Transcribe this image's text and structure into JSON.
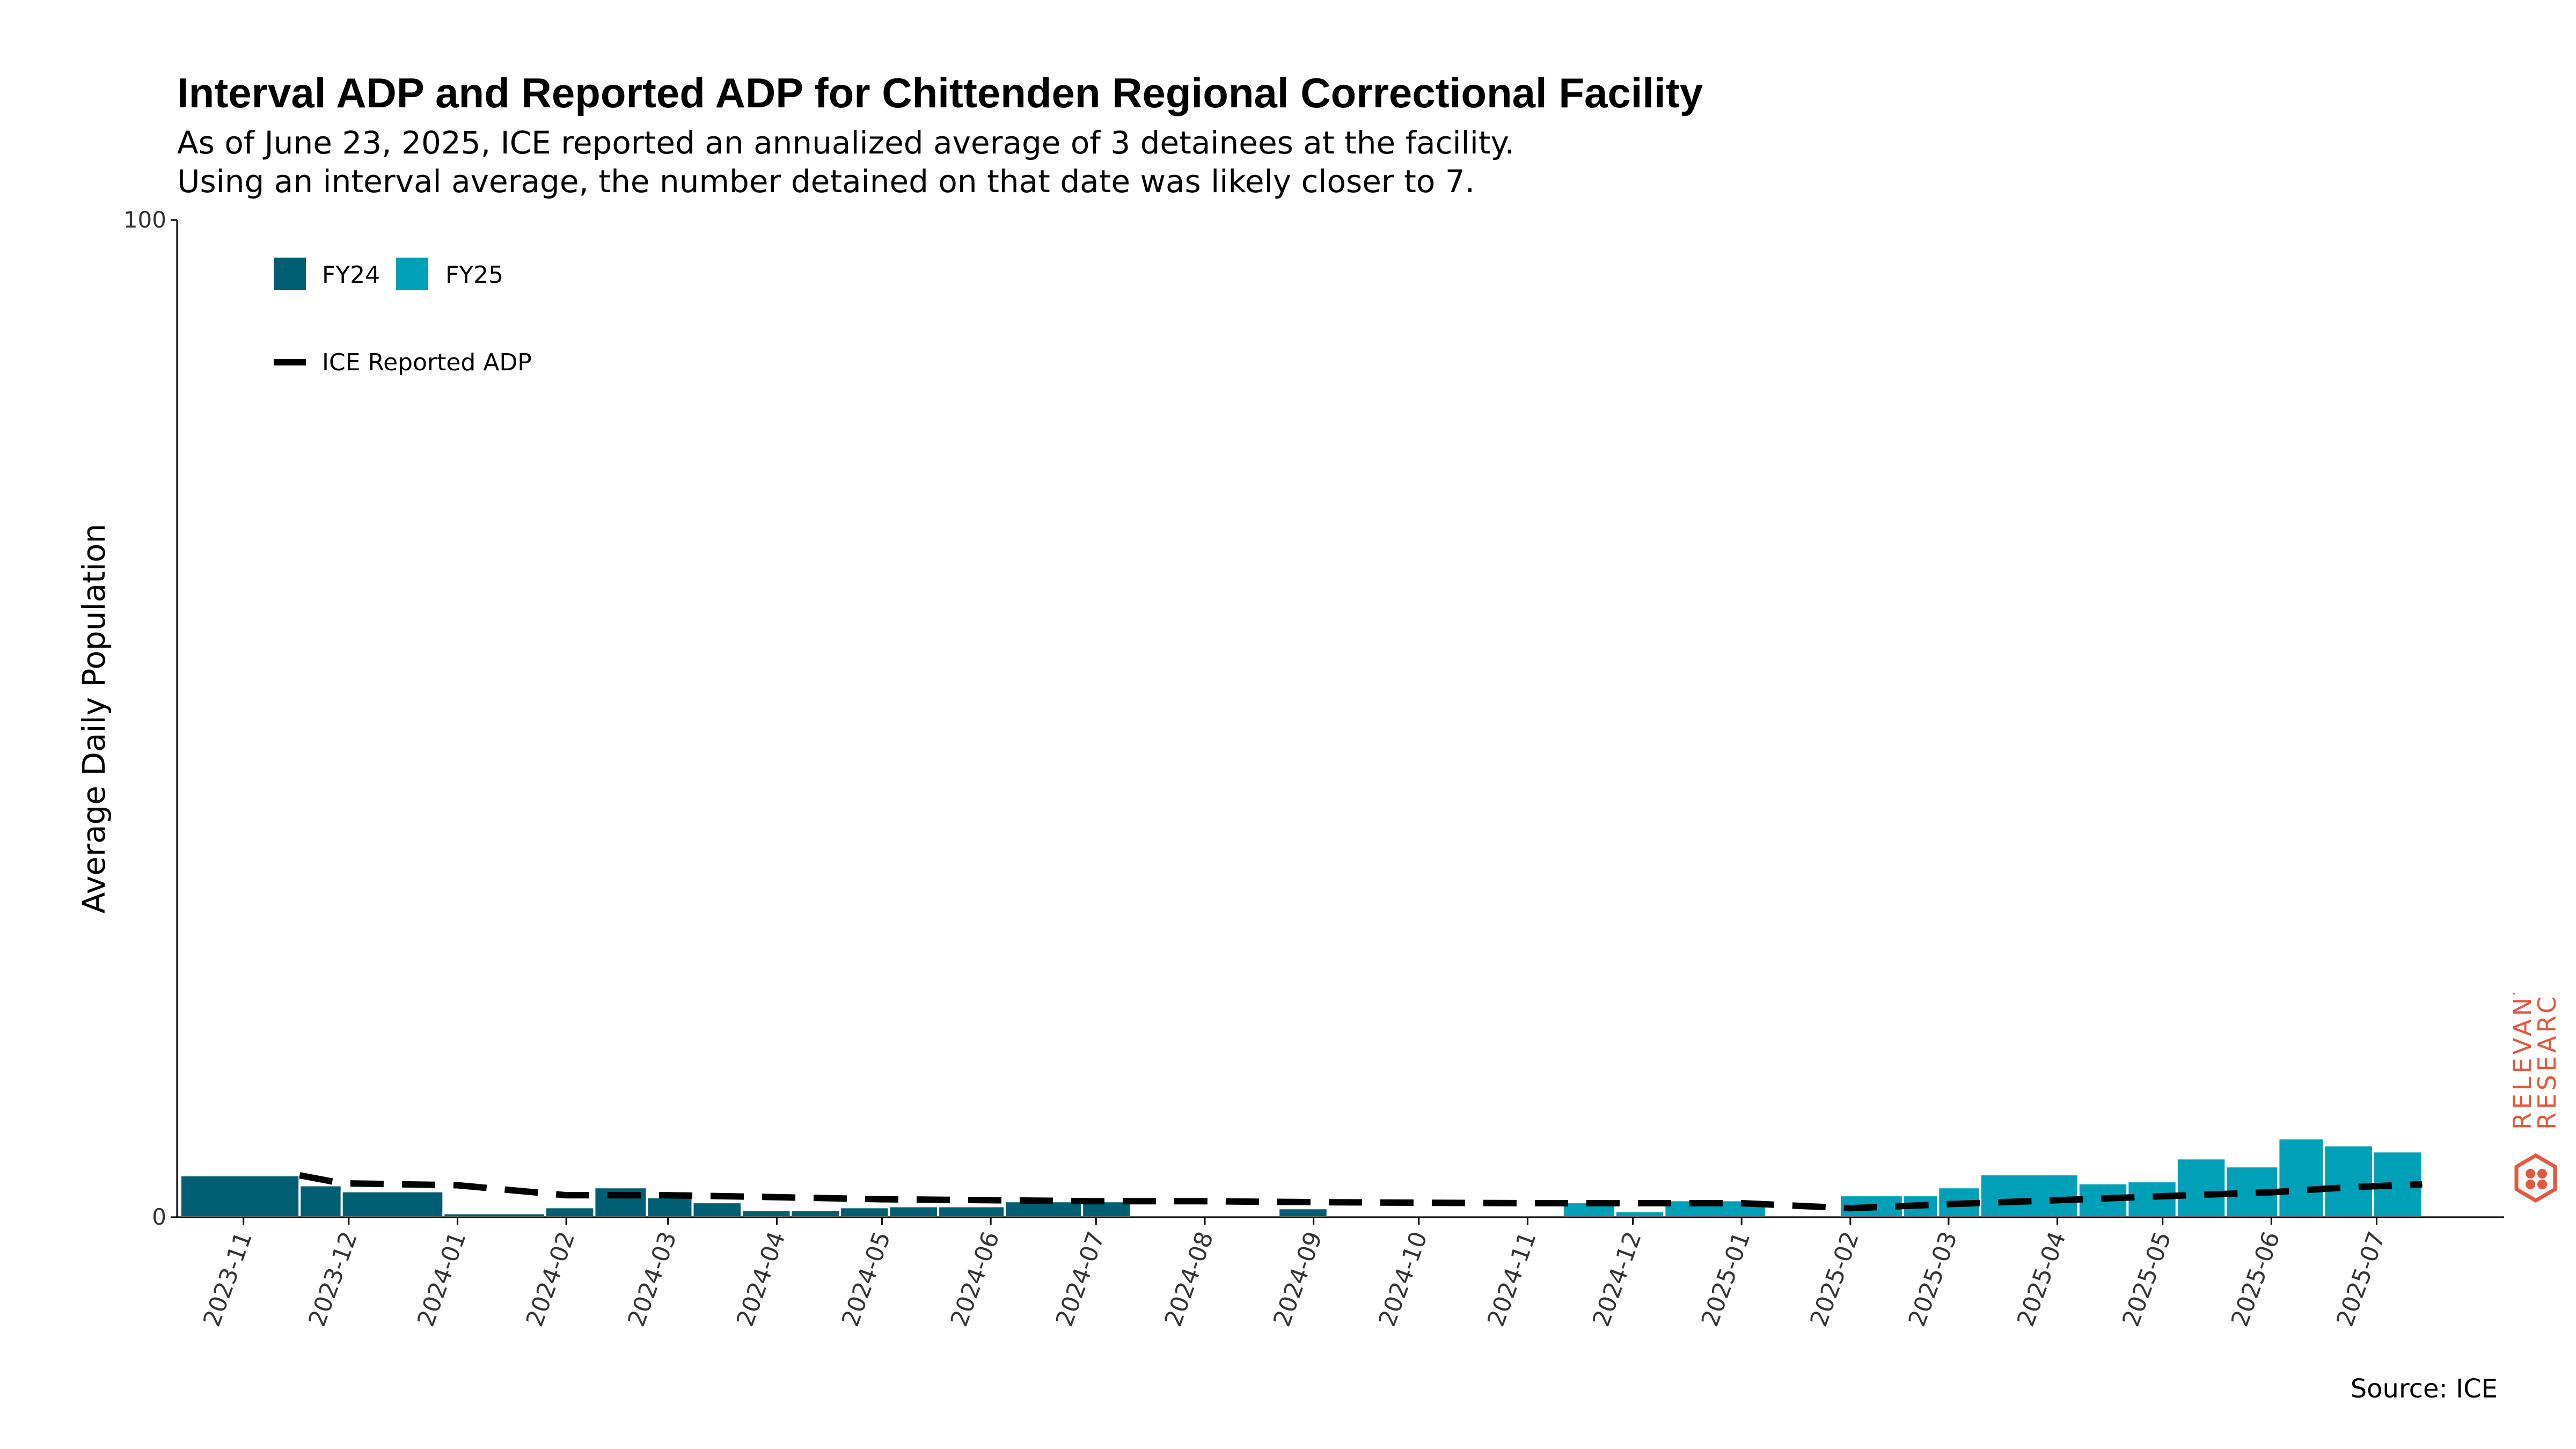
{
  "header": {
    "title": "Interval ADP and Reported ADP for Chittenden Regional Correctional Facility",
    "subtitle_line1": "As of June 23, 2025, ICE reported an annualized average of 3 detainees at the facility.",
    "subtitle_line2": "Using an interval average, the number detained on that date was likely closer to 7."
  },
  "source": "Source: ICE",
  "brand": {
    "line1": "RELEVANT",
    "line2": "RESEARCH",
    "color": "#e4573d"
  },
  "chart_data": {
    "type": "bar",
    "title": "Interval ADP and Reported ADP for Chittenden Regional Correctional Facility",
    "ylabel": "Average Daily Population",
    "xlabel": "",
    "ylim": [
      0,
      100
    ],
    "yticks": [
      "0",
      "100"
    ],
    "xlim": [
      "2023-10-14",
      "2025-07-15"
    ],
    "x_tick_labels": [
      "2023-11",
      "2023-12",
      "2024-01",
      "2024-02",
      "2024-03",
      "2024-04",
      "2024-05",
      "2024-06",
      "2024-07",
      "2024-08",
      "2024-09",
      "2024-10",
      "2024-11",
      "2024-12",
      "2025-01",
      "2025-02",
      "2025-03",
      "2025-04",
      "2025-05",
      "2025-06",
      "2025-07"
    ],
    "x_tick_dates": [
      "2023-11-01",
      "2023-12-01",
      "2024-01-01",
      "2024-02-01",
      "2024-03-01",
      "2024-04-01",
      "2024-05-01",
      "2024-06-01",
      "2024-07-01",
      "2024-08-01",
      "2024-09-01",
      "2024-10-01",
      "2024-11-01",
      "2024-12-01",
      "2025-01-01",
      "2025-02-01",
      "2025-03-01",
      "2025-04-01",
      "2025-05-01",
      "2025-06-01",
      "2025-07-01"
    ],
    "legend": {
      "placement": "top-left",
      "entries": [
        "FY24",
        "FY25",
        "ICE Reported ADP"
      ]
    },
    "colors": {
      "FY24": "#005f73",
      "FY25": "#00a0b8",
      "line": "#000000"
    },
    "series": [
      {
        "name": "FY24",
        "color": "#005f73",
        "intervals": [
          {
            "start": "2023-10-14",
            "end": "2023-11-17",
            "value": 4.2
          },
          {
            "start": "2023-11-17",
            "end": "2023-11-29",
            "value": 3.2
          },
          {
            "start": "2023-11-29",
            "end": "2023-12-28",
            "value": 2.6
          },
          {
            "start": "2023-12-28",
            "end": "2024-01-26",
            "value": 0.4
          },
          {
            "start": "2024-01-26",
            "end": "2024-02-09",
            "value": 1.0
          },
          {
            "start": "2024-02-09",
            "end": "2024-02-24",
            "value": 3.0
          },
          {
            "start": "2024-02-24",
            "end": "2024-03-08",
            "value": 2.0
          },
          {
            "start": "2024-03-08",
            "end": "2024-03-22",
            "value": 1.5
          },
          {
            "start": "2024-03-22",
            "end": "2024-04-05",
            "value": 0.7
          },
          {
            "start": "2024-04-05",
            "end": "2024-04-19",
            "value": 0.7
          },
          {
            "start": "2024-04-19",
            "end": "2024-05-03",
            "value": 1.0
          },
          {
            "start": "2024-05-03",
            "end": "2024-05-17",
            "value": 1.1
          },
          {
            "start": "2024-05-17",
            "end": "2024-06-05",
            "value": 1.1
          },
          {
            "start": "2024-06-05",
            "end": "2024-06-27",
            "value": 1.6
          },
          {
            "start": "2024-06-27",
            "end": "2024-07-11",
            "value": 1.6
          },
          {
            "start": "2024-08-22",
            "end": "2024-09-05",
            "value": 0.9
          },
          {
            "start": "2024-09-05",
            "end": "2024-09-30",
            "value": 0.15
          }
        ]
      },
      {
        "name": "FY25",
        "color": "#00a0b8",
        "intervals": [
          {
            "start": "2024-10-01",
            "end": "2024-11-11",
            "value": 0.15
          },
          {
            "start": "2024-11-11",
            "end": "2024-11-26",
            "value": 1.5
          },
          {
            "start": "2024-11-26",
            "end": "2024-12-10",
            "value": 0.6
          },
          {
            "start": "2024-12-10",
            "end": "2025-01-08",
            "value": 1.7
          },
          {
            "start": "2025-01-29",
            "end": "2025-02-16",
            "value": 2.2
          },
          {
            "start": "2025-02-16",
            "end": "2025-02-26",
            "value": 2.2
          },
          {
            "start": "2025-02-26",
            "end": "2025-03-10",
            "value": 3.0
          },
          {
            "start": "2025-03-10",
            "end": "2025-04-07",
            "value": 4.3
          },
          {
            "start": "2025-04-07",
            "end": "2025-04-21",
            "value": 3.4
          },
          {
            "start": "2025-04-21",
            "end": "2025-05-05",
            "value": 3.6
          },
          {
            "start": "2025-05-05",
            "end": "2025-05-19",
            "value": 5.9
          },
          {
            "start": "2025-05-19",
            "end": "2025-06-03",
            "value": 5.1
          },
          {
            "start": "2025-06-03",
            "end": "2025-06-16",
            "value": 7.9
          },
          {
            "start": "2025-06-16",
            "end": "2025-06-30",
            "value": 7.2
          },
          {
            "start": "2025-06-30",
            "end": "2025-07-14",
            "value": 6.6
          }
        ]
      },
      {
        "name": "ICE Reported ADP",
        "type": "line",
        "dashed": true,
        "color": "#000000",
        "points": [
          {
            "x": "2023-11-17",
            "y": 4.2
          },
          {
            "x": "2023-11-29",
            "y": 3.4
          },
          {
            "x": "2024-01-01",
            "y": 3.2
          },
          {
            "x": "2024-02-01",
            "y": 2.2
          },
          {
            "x": "2024-03-01",
            "y": 2.2
          },
          {
            "x": "2024-04-01",
            "y": 2.0
          },
          {
            "x": "2024-05-01",
            "y": 1.8
          },
          {
            "x": "2024-06-01",
            "y": 1.7
          },
          {
            "x": "2024-07-01",
            "y": 1.6
          },
          {
            "x": "2024-08-01",
            "y": 1.6
          },
          {
            "x": "2024-09-01",
            "y": 1.5
          },
          {
            "x": "2024-10-01",
            "y": 1.45
          },
          {
            "x": "2024-11-01",
            "y": 1.4
          },
          {
            "x": "2024-12-01",
            "y": 1.4
          },
          {
            "x": "2025-01-01",
            "y": 1.4
          },
          {
            "x": "2025-02-01",
            "y": 0.9
          },
          {
            "x": "2025-03-01",
            "y": 1.3
          },
          {
            "x": "2025-04-01",
            "y": 1.7
          },
          {
            "x": "2025-05-01",
            "y": 2.1
          },
          {
            "x": "2025-06-01",
            "y": 2.5
          },
          {
            "x": "2025-06-23",
            "y": 3.0
          },
          {
            "x": "2025-07-14",
            "y": 3.3
          }
        ]
      }
    ]
  }
}
